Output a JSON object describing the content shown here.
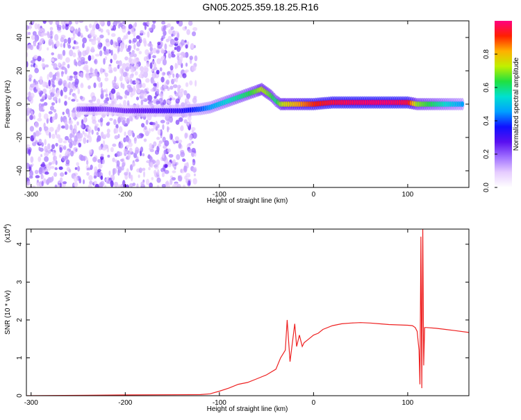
{
  "title": "GN05.2025.359.18.25.R16",
  "charts": [
    {
      "type": "heatmap",
      "xlabel": "Height of straight line (km)",
      "ylabel": "Frequency (Hz)",
      "xlim": [
        -305,
        165
      ],
      "ylim": [
        -50,
        50
      ],
      "xticks": [
        -300,
        -200,
        -100,
        0,
        100
      ],
      "yticks": [
        -40,
        -20,
        0,
        20,
        40
      ],
      "colorbar": {
        "label": "Normalized spectral amplitude",
        "range": [
          0,
          1
        ],
        "ticks": [
          0.0,
          0.2,
          0.4,
          0.6,
          0.8
        ],
        "stops": [
          "#ffffff",
          "#e6ccff",
          "#a070ff",
          "#5a10f0",
          "#1010ff",
          "#00a0ff",
          "#00e0d0",
          "#20e040",
          "#c0f000",
          "#ffb000",
          "#ff2000",
          "#ff0080"
        ]
      },
      "ridge": [
        {
          "x": -250,
          "y": -3,
          "a": 0.2
        },
        {
          "x": -235,
          "y": -3,
          "a": 0.28
        },
        {
          "x": -220,
          "y": -3,
          "a": 0.22
        },
        {
          "x": -200,
          "y": -4,
          "a": 0.25
        },
        {
          "x": -180,
          "y": -4,
          "a": 0.28
        },
        {
          "x": -160,
          "y": -4,
          "a": 0.3
        },
        {
          "x": -140,
          "y": -4,
          "a": 0.33
        },
        {
          "x": -120,
          "y": -3,
          "a": 0.4
        },
        {
          "x": -110,
          "y": -2,
          "a": 0.45
        },
        {
          "x": -100,
          "y": 0,
          "a": 0.5
        },
        {
          "x": -90,
          "y": 2,
          "a": 0.55
        },
        {
          "x": -80,
          "y": 4,
          "a": 0.58
        },
        {
          "x": -70,
          "y": 6,
          "a": 0.62
        },
        {
          "x": -60,
          "y": 8,
          "a": 0.68
        },
        {
          "x": -55,
          "y": 9,
          "a": 0.72
        },
        {
          "x": -50,
          "y": 7,
          "a": 0.7
        },
        {
          "x": -45,
          "y": 5,
          "a": 0.65
        },
        {
          "x": -40,
          "y": 2,
          "a": 0.6
        },
        {
          "x": -35,
          "y": 0,
          "a": 0.7
        },
        {
          "x": -30,
          "y": 0,
          "a": 0.75
        },
        {
          "x": -20,
          "y": 0,
          "a": 0.8
        },
        {
          "x": -10,
          "y": 0,
          "a": 0.85
        },
        {
          "x": 0,
          "y": 0,
          "a": 0.9
        },
        {
          "x": 20,
          "y": 1,
          "a": 0.95
        },
        {
          "x": 40,
          "y": 1,
          "a": 0.97
        },
        {
          "x": 60,
          "y": 1,
          "a": 0.98
        },
        {
          "x": 80,
          "y": 1,
          "a": 0.98
        },
        {
          "x": 100,
          "y": 1,
          "a": 0.95
        },
        {
          "x": 110,
          "y": 0,
          "a": 0.7
        },
        {
          "x": 120,
          "y": 0,
          "a": 0.65
        },
        {
          "x": 140,
          "y": 0,
          "a": 0.55
        },
        {
          "x": 160,
          "y": 0,
          "a": 0.45
        }
      ]
    },
    {
      "type": "line",
      "xlabel": "Height of straight line (km)",
      "ylabel": "SNR (10 * v/v)",
      "exponent_label": "(x10",
      "exponent_power": "4",
      "xlim": [
        -305,
        165
      ],
      "ylim": [
        0,
        4.4
      ],
      "xticks": [
        -300,
        -200,
        -100,
        0,
        100
      ],
      "yticks": [
        0,
        1,
        2,
        3,
        4
      ],
      "color": "#ee2020",
      "series": [
        {
          "x": [
            -305,
            -200,
            -120,
            -110,
            -100,
            -90,
            -80,
            -70,
            -60,
            -50,
            -40,
            -35,
            -30,
            -28,
            -25,
            -22,
            -20,
            -18,
            -15,
            -12,
            -10,
            -5,
            0,
            5,
            10,
            20,
            30,
            40,
            50,
            60,
            70,
            80,
            90,
            100,
            105,
            108,
            110,
            112,
            113,
            114,
            115,
            116,
            117,
            118,
            120,
            130,
            140,
            150,
            165
          ],
          "y": [
            0.0,
            0.02,
            0.03,
            0.05,
            0.12,
            0.2,
            0.3,
            0.35,
            0.45,
            0.55,
            0.7,
            1.0,
            1.2,
            2.0,
            0.9,
            1.5,
            1.9,
            1.3,
            1.6,
            1.3,
            1.4,
            1.5,
            1.6,
            1.65,
            1.75,
            1.85,
            1.9,
            1.92,
            1.93,
            1.92,
            1.9,
            1.88,
            1.87,
            1.86,
            1.85,
            1.8,
            1.7,
            1.2,
            0.3,
            4.2,
            0.2,
            4.4,
            0.8,
            1.8,
            1.8,
            1.78,
            1.75,
            1.72,
            1.67
          ]
        }
      ]
    }
  ]
}
